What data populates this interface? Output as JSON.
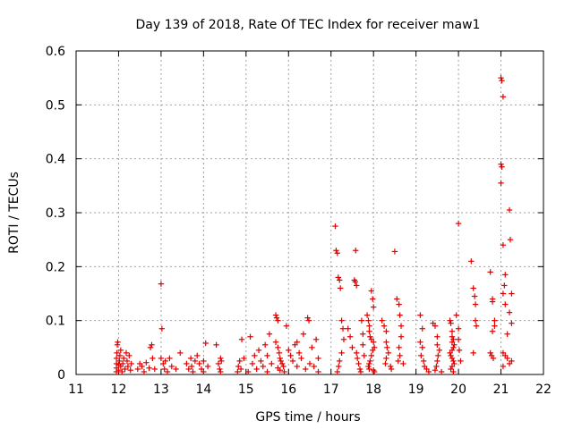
{
  "chart_data": {
    "type": "scatter",
    "title": "Day 139 of 2018, Rate Of TEC Index for receiver maw1",
    "xlabel": "GPS time / hours",
    "ylabel": "ROTI / TECUs",
    "xlim": [
      11,
      22
    ],
    "ylim": [
      0,
      0.6
    ],
    "xticks": [
      "11",
      "12",
      "13",
      "14",
      "15",
      "16",
      "17",
      "18",
      "19",
      "20",
      "21",
      "22"
    ],
    "yticks": [
      "0",
      "0.1",
      "0.2",
      "0.3",
      "0.4",
      "0.5",
      "0.6"
    ],
    "grid": true,
    "marker": "+",
    "color": "#e00000",
    "series": [
      {
        "name": "ROTI",
        "points": [
          [
            11.95,
            0.005
          ],
          [
            11.95,
            0.012
          ],
          [
            11.95,
            0.02
          ],
          [
            11.95,
            0.03
          ],
          [
            11.96,
            0.04
          ],
          [
            11.97,
            0.055
          ],
          [
            11.98,
            0.06
          ],
          [
            12.0,
            0.008
          ],
          [
            12.0,
            0.018
          ],
          [
            12.02,
            0.025
          ],
          [
            12.03,
            0.035
          ],
          [
            12.05,
            0.045
          ],
          [
            12.05,
            0.015
          ],
          [
            12.08,
            0.005
          ],
          [
            12.1,
            0.02
          ],
          [
            12.12,
            0.03
          ],
          [
            12.15,
            0.01
          ],
          [
            12.18,
            0.04
          ],
          [
            12.2,
            0.025
          ],
          [
            12.22,
            0.015
          ],
          [
            12.25,
            0.035
          ],
          [
            12.28,
            0.008
          ],
          [
            12.3,
            0.02
          ],
          [
            12.45,
            0.01
          ],
          [
            12.5,
            0.02
          ],
          [
            12.55,
            0.015
          ],
          [
            12.6,
            0.005
          ],
          [
            12.65,
            0.022
          ],
          [
            12.72,
            0.012
          ],
          [
            12.75,
            0.05
          ],
          [
            12.78,
            0.055
          ],
          [
            12.8,
            0.03
          ],
          [
            12.85,
            0.01
          ],
          [
            13.0,
            0.168
          ],
          [
            13.02,
            0.085
          ],
          [
            13.0,
            0.03
          ],
          [
            13.05,
            0.02
          ],
          [
            13.08,
            0.01
          ],
          [
            13.1,
            0.025
          ],
          [
            13.15,
            0.005
          ],
          [
            13.2,
            0.03
          ],
          [
            13.25,
            0.015
          ],
          [
            13.35,
            0.01
          ],
          [
            13.45,
            0.04
          ],
          [
            13.6,
            0.02
          ],
          [
            13.65,
            0.01
          ],
          [
            13.7,
            0.03
          ],
          [
            13.72,
            0.015
          ],
          [
            13.75,
            0.005
          ],
          [
            13.8,
            0.025
          ],
          [
            13.85,
            0.035
          ],
          [
            13.9,
            0.02
          ],
          [
            13.95,
            0.01
          ],
          [
            14.0,
            0.025
          ],
          [
            14.0,
            0.005
          ],
          [
            14.05,
            0.058
          ],
          [
            14.1,
            0.015
          ],
          [
            14.3,
            0.055
          ],
          [
            14.35,
            0.02
          ],
          [
            14.38,
            0.01
          ],
          [
            14.4,
            0.03
          ],
          [
            14.4,
            0.005
          ],
          [
            14.42,
            0.025
          ],
          [
            14.8,
            0.005
          ],
          [
            14.82,
            0.015
          ],
          [
            14.85,
            0.025
          ],
          [
            14.88,
            0.01
          ],
          [
            14.9,
            0.065
          ],
          [
            14.95,
            0.03
          ],
          [
            15.05,
            0.005
          ],
          [
            15.1,
            0.07
          ],
          [
            15.15,
            0.02
          ],
          [
            15.2,
            0.035
          ],
          [
            15.25,
            0.01
          ],
          [
            15.3,
            0.045
          ],
          [
            15.35,
            0.025
          ],
          [
            15.4,
            0.015
          ],
          [
            15.45,
            0.055
          ],
          [
            15.5,
            0.005
          ],
          [
            15.5,
            0.035
          ],
          [
            15.55,
            0.075
          ],
          [
            15.6,
            0.02
          ],
          [
            15.7,
            0.11
          ],
          [
            15.72,
            0.105
          ],
          [
            15.75,
            0.1
          ],
          [
            15.7,
            0.06
          ],
          [
            15.75,
            0.05
          ],
          [
            15.78,
            0.04
          ],
          [
            15.8,
            0.03
          ],
          [
            15.82,
            0.025
          ],
          [
            15.85,
            0.02
          ],
          [
            15.88,
            0.015
          ],
          [
            15.75,
            0.012
          ],
          [
            15.8,
            0.008
          ],
          [
            15.9,
            0.005
          ],
          [
            15.95,
            0.09
          ],
          [
            16.0,
            0.045
          ],
          [
            16.05,
            0.035
          ],
          [
            16.1,
            0.025
          ],
          [
            16.15,
            0.055
          ],
          [
            16.2,
            0.06
          ],
          [
            16.2,
            0.015
          ],
          [
            16.25,
            0.04
          ],
          [
            16.3,
            0.03
          ],
          [
            16.35,
            0.075
          ],
          [
            16.4,
            0.01
          ],
          [
            16.45,
            0.105
          ],
          [
            16.48,
            0.1
          ],
          [
            16.5,
            0.02
          ],
          [
            16.55,
            0.05
          ],
          [
            16.6,
            0.015
          ],
          [
            16.65,
            0.065
          ],
          [
            16.7,
            0.03
          ],
          [
            16.7,
            0.005
          ],
          [
            17.1,
            0.275
          ],
          [
            17.12,
            0.23
          ],
          [
            17.15,
            0.225
          ],
          [
            17.17,
            0.18
          ],
          [
            17.2,
            0.175
          ],
          [
            17.22,
            0.16
          ],
          [
            17.25,
            0.1
          ],
          [
            17.28,
            0.085
          ],
          [
            17.3,
            0.065
          ],
          [
            17.25,
            0.04
          ],
          [
            17.2,
            0.025
          ],
          [
            17.18,
            0.015
          ],
          [
            17.15,
            0.005
          ],
          [
            17.4,
            0.085
          ],
          [
            17.45,
            0.07
          ],
          [
            17.5,
            0.05
          ],
          [
            17.55,
            0.175
          ],
          [
            17.57,
            0.172
          ],
          [
            17.6,
            0.165
          ],
          [
            17.58,
            0.23
          ],
          [
            17.6,
            0.04
          ],
          [
            17.62,
            0.03
          ],
          [
            17.65,
            0.02
          ],
          [
            17.68,
            0.01
          ],
          [
            17.7,
            0.005
          ],
          [
            17.72,
            0.1
          ],
          [
            17.75,
            0.075
          ],
          [
            17.75,
            0.055
          ],
          [
            17.78,
            0.035
          ],
          [
            17.85,
            0.11
          ],
          [
            17.88,
            0.1
          ],
          [
            17.9,
            0.09
          ],
          [
            17.9,
            0.08
          ],
          [
            17.92,
            0.07
          ],
          [
            17.95,
            0.065
          ],
          [
            17.95,
            0.155
          ],
          [
            17.98,
            0.14
          ],
          [
            18.0,
            0.125
          ],
          [
            18.0,
            0.06
          ],
          [
            18.02,
            0.05
          ],
          [
            17.98,
            0.045
          ],
          [
            17.95,
            0.035
          ],
          [
            17.92,
            0.025
          ],
          [
            17.9,
            0.02
          ],
          [
            17.88,
            0.015
          ],
          [
            17.9,
            0.01
          ],
          [
            18.0,
            0.008
          ],
          [
            18.02,
            0.005
          ],
          [
            18.2,
            0.1
          ],
          [
            18.25,
            0.09
          ],
          [
            18.3,
            0.08
          ],
          [
            18.3,
            0.06
          ],
          [
            18.32,
            0.05
          ],
          [
            18.35,
            0.04
          ],
          [
            18.3,
            0.03
          ],
          [
            18.28,
            0.02
          ],
          [
            18.4,
            0.015
          ],
          [
            18.42,
            0.01
          ],
          [
            18.5,
            0.228
          ],
          [
            18.55,
            0.14
          ],
          [
            18.6,
            0.13
          ],
          [
            18.62,
            0.11
          ],
          [
            18.65,
            0.09
          ],
          [
            18.65,
            0.07
          ],
          [
            18.6,
            0.05
          ],
          [
            18.62,
            0.035
          ],
          [
            18.58,
            0.025
          ],
          [
            18.7,
            0.02
          ],
          [
            19.1,
            0.11
          ],
          [
            19.15,
            0.085
          ],
          [
            19.1,
            0.06
          ],
          [
            19.15,
            0.05
          ],
          [
            19.12,
            0.035
          ],
          [
            19.18,
            0.025
          ],
          [
            19.2,
            0.015
          ],
          [
            19.25,
            0.01
          ],
          [
            19.3,
            0.005
          ],
          [
            19.4,
            0.095
          ],
          [
            19.45,
            0.09
          ],
          [
            19.5,
            0.07
          ],
          [
            19.5,
            0.055
          ],
          [
            19.55,
            0.045
          ],
          [
            19.52,
            0.035
          ],
          [
            19.5,
            0.025
          ],
          [
            19.48,
            0.015
          ],
          [
            19.45,
            0.008
          ],
          [
            19.6,
            0.005
          ],
          [
            19.8,
            0.1
          ],
          [
            19.82,
            0.095
          ],
          [
            19.85,
            0.08
          ],
          [
            19.85,
            0.07
          ],
          [
            19.88,
            0.065
          ],
          [
            19.85,
            0.06
          ],
          [
            19.9,
            0.055
          ],
          [
            19.88,
            0.05
          ],
          [
            19.85,
            0.045
          ],
          [
            19.8,
            0.04
          ],
          [
            19.82,
            0.035
          ],
          [
            19.85,
            0.03
          ],
          [
            19.88,
            0.025
          ],
          [
            19.9,
            0.02
          ],
          [
            19.85,
            0.015
          ],
          [
            19.82,
            0.01
          ],
          [
            19.88,
            0.005
          ],
          [
            19.95,
            0.11
          ],
          [
            20.0,
            0.085
          ],
          [
            20.0,
            0.065
          ],
          [
            20.02,
            0.045
          ],
          [
            20.05,
            0.025
          ],
          [
            20.0,
            0.28
          ],
          [
            20.3,
            0.21
          ],
          [
            20.35,
            0.16
          ],
          [
            20.38,
            0.145
          ],
          [
            20.4,
            0.13
          ],
          [
            20.4,
            0.1
          ],
          [
            20.42,
            0.09
          ],
          [
            20.35,
            0.04
          ],
          [
            20.75,
            0.19
          ],
          [
            20.8,
            0.14
          ],
          [
            20.8,
            0.135
          ],
          [
            20.85,
            0.1
          ],
          [
            20.85,
            0.09
          ],
          [
            20.8,
            0.08
          ],
          [
            20.75,
            0.04
          ],
          [
            20.78,
            0.035
          ],
          [
            20.82,
            0.03
          ],
          [
            21.0,
            0.55
          ],
          [
            21.02,
            0.545
          ],
          [
            21.05,
            0.515
          ],
          [
            21.0,
            0.39
          ],
          [
            21.02,
            0.385
          ],
          [
            21.0,
            0.355
          ],
          [
            21.2,
            0.305
          ],
          [
            21.22,
            0.25
          ],
          [
            21.05,
            0.24
          ],
          [
            21.1,
            0.185
          ],
          [
            21.08,
            0.165
          ],
          [
            21.05,
            0.15
          ],
          [
            21.25,
            0.15
          ],
          [
            21.1,
            0.13
          ],
          [
            21.2,
            0.115
          ],
          [
            21.25,
            0.095
          ],
          [
            21.15,
            0.075
          ],
          [
            21.05,
            0.04
          ],
          [
            21.1,
            0.035
          ],
          [
            21.15,
            0.03
          ],
          [
            21.25,
            0.025
          ],
          [
            21.05,
            0.015
          ],
          [
            21.2,
            0.02
          ]
        ]
      }
    ]
  }
}
